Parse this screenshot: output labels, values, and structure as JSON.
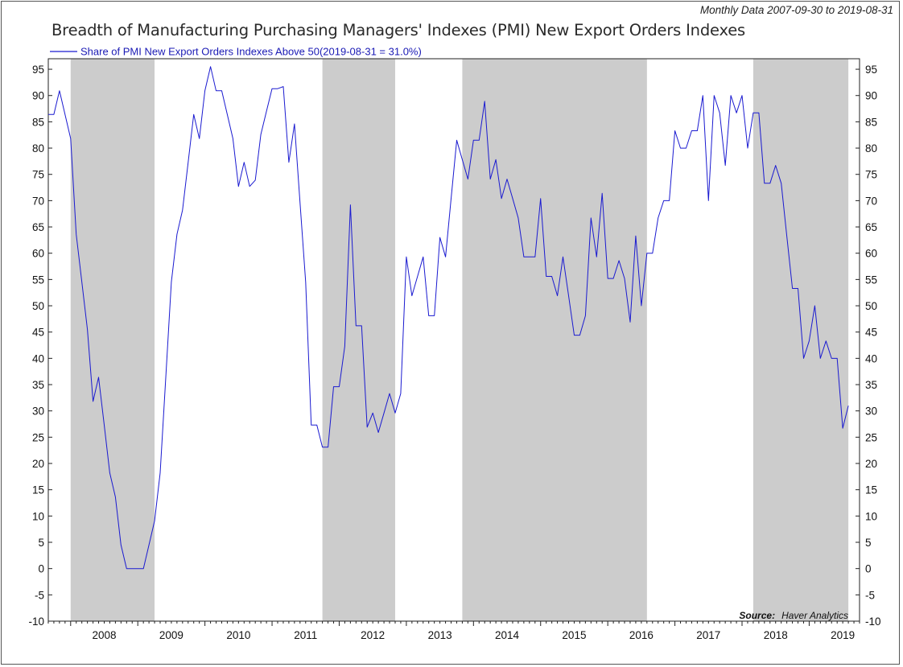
{
  "header": {
    "subtitle": "Monthly Data 2007-09-30 to 2019-08-31",
    "title": "Breadth of Manufacturing Purchasing Managers' Indexes (PMI) New Export Orders Indexes"
  },
  "colors": {
    "line": "#1a1ad0",
    "shade": "#cccccc",
    "axis": "#222222",
    "background": "#ffffff"
  },
  "chart_data": {
    "type": "line",
    "title": "Breadth of Manufacturing Purchasing Managers' Indexes (PMI) New Export Orders Indexes",
    "xlabel": "",
    "ylabel": "",
    "ylim": [
      -10,
      97
    ],
    "yticks": [
      -10,
      -5,
      0,
      5,
      10,
      15,
      20,
      25,
      30,
      35,
      40,
      45,
      50,
      55,
      60,
      65,
      70,
      75,
      80,
      85,
      90,
      95
    ],
    "xlim": [
      2007.667,
      2019.75
    ],
    "xtick_labels": [
      "2008",
      "2009",
      "2010",
      "2011",
      "2012",
      "2013",
      "2014",
      "2015",
      "2016",
      "2017",
      "2018",
      "2019"
    ],
    "legend": {
      "label": "Share of PMI New Export Orders Indexes Above 50(2019-08-31 = 31.0%)",
      "placement": "top-left"
    },
    "source": {
      "label": "Source:",
      "value": "Haver Analytics"
    },
    "shaded_periods": [
      [
        "2008-01",
        "2009-04"
      ],
      [
        "2011-10",
        "2012-11"
      ],
      [
        "2013-11",
        "2016-08"
      ],
      [
        "2018-03",
        "2019-08"
      ]
    ],
    "series": [
      {
        "name": "Share of PMI New Export Orders Indexes Above 50",
        "start": "2007-09",
        "frequency": "monthly",
        "values": [
          86.4,
          86.4,
          90.9,
          86.4,
          81.8,
          63.6,
          54.5,
          45.5,
          31.8,
          36.4,
          27.3,
          18.2,
          13.6,
          4.5,
          0.0,
          0.0,
          0.0,
          0.0,
          4.5,
          9.1,
          18.2,
          36.4,
          54.5,
          63.6,
          68.2,
          77.3,
          86.4,
          81.8,
          90.9,
          95.5,
          90.9,
          90.9,
          86.4,
          81.8,
          72.7,
          77.3,
          72.7,
          73.9,
          82.6,
          87.0,
          91.3,
          91.3,
          91.7,
          77.3,
          84.6,
          69.6,
          54.5,
          27.3,
          27.3,
          23.1,
          23.1,
          34.6,
          34.6,
          42.3,
          69.2,
          46.2,
          46.2,
          26.9,
          29.6,
          25.9,
          29.6,
          33.3,
          29.6,
          33.3,
          59.3,
          51.9,
          55.6,
          59.3,
          48.1,
          48.1,
          63.0,
          59.3,
          70.4,
          81.5,
          77.8,
          74.1,
          81.5,
          81.5,
          88.9,
          74.1,
          77.8,
          70.4,
          74.1,
          70.4,
          66.7,
          59.3,
          59.3,
          59.3,
          70.4,
          55.6,
          55.6,
          51.9,
          59.3,
          51.9,
          44.4,
          44.4,
          48.1,
          66.7,
          59.3,
          71.4,
          55.2,
          55.2,
          58.6,
          55.2,
          46.9,
          63.3,
          50.0,
          60.0,
          60.0,
          66.7,
          70.0,
          70.0,
          83.3,
          80.0,
          80.0,
          83.3,
          83.3,
          90.0,
          70.0,
          90.0,
          86.7,
          76.7,
          90.0,
          86.7,
          90.0,
          80.0,
          86.7,
          86.7,
          73.3,
          73.3,
          76.7,
          73.3,
          63.3,
          53.3,
          53.3,
          40.0,
          43.3,
          50.0,
          40.0,
          43.3,
          40.0,
          40.0,
          26.7,
          31.0
        ]
      }
    ]
  }
}
